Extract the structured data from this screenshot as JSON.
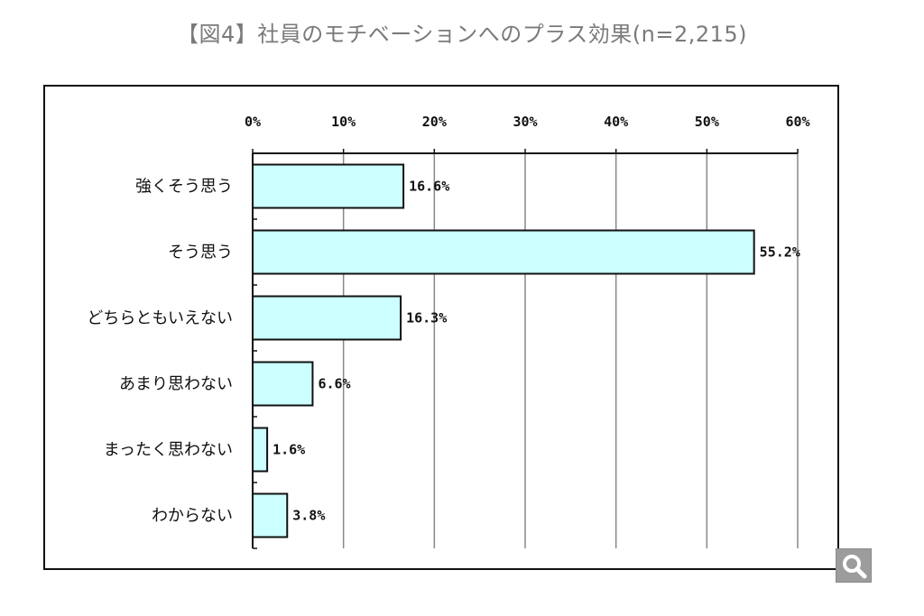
{
  "page": {
    "title": "【図4】社員のモチベーションへのプラス効果(n=2,215)"
  },
  "colors": {
    "bar_fill": "#ccffff",
    "bar_stroke": "#111111",
    "grid": "#888888",
    "zoom_button": "#9c9c9c"
  },
  "zoom_button": {
    "icon": "magnifier-icon"
  },
  "chart_data": {
    "type": "bar",
    "orientation": "horizontal",
    "title": "【図4】社員のモチベーションへのプラス効果(n=2,215)",
    "xlabel": "",
    "ylabel": "",
    "xlim": [
      0,
      60
    ],
    "x_ticks": [
      0,
      10,
      20,
      30,
      40,
      50,
      60
    ],
    "x_tick_labels": [
      "0%",
      "10%",
      "20%",
      "30%",
      "40%",
      "50%",
      "60%"
    ],
    "x_axis_position": "top",
    "grid": "vertical",
    "legend": "none",
    "categories": [
      "強くそう思う",
      "そう思う",
      "どちらともいえない",
      "あまり思わない",
      "まったく思わない",
      "わからない"
    ],
    "values": [
      16.6,
      55.2,
      16.3,
      6.6,
      1.6,
      3.8
    ],
    "data_labels": [
      "16.6%",
      "55.2%",
      "16.3%",
      "6.6%",
      "1.6%",
      "3.8%"
    ]
  }
}
